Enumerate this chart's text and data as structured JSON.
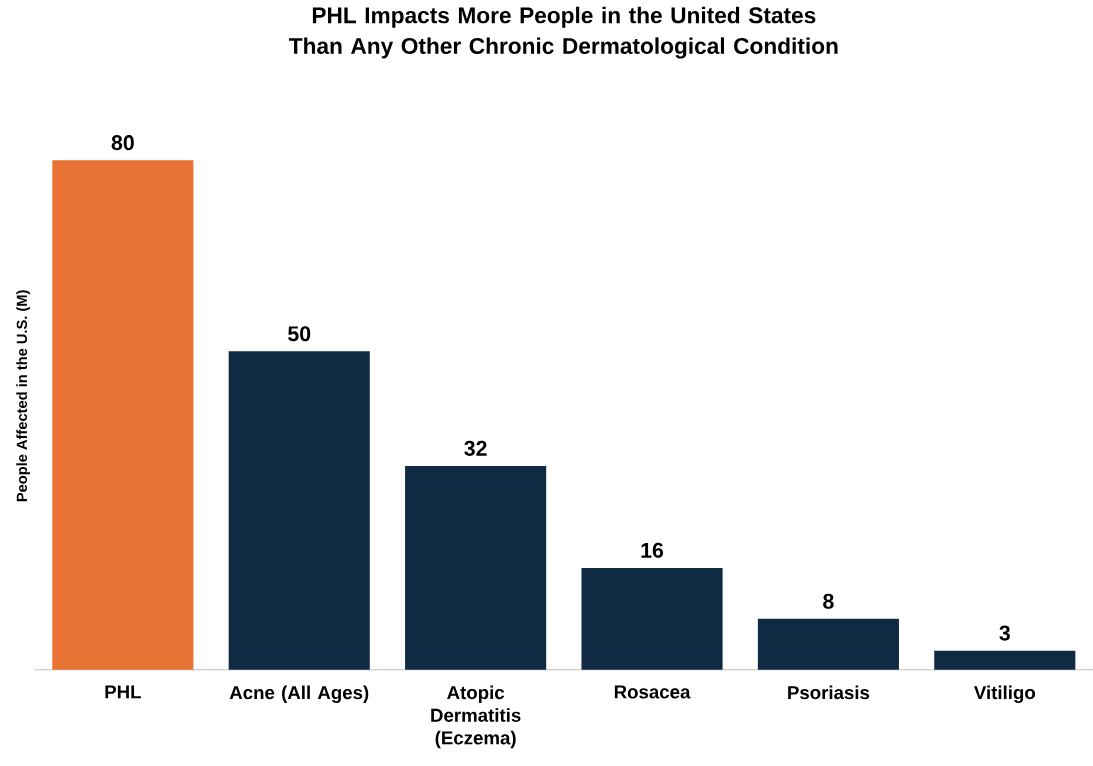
{
  "chart_data": {
    "type": "bar",
    "title": "PHL Impacts More People in the United States Than Any Other Chronic Dermatological Condition",
    "ylabel": "People Affected in the  U.S. (M)",
    "categories": [
      "PHL",
      "Acne (All Ages)",
      "Atopic Dermatitis (Eczema)",
      "Rosacea",
      "Psoriasis",
      "Vitiligo"
    ],
    "values": [
      80,
      50,
      32,
      16,
      8,
      3
    ],
    "colors": [
      "#e97334",
      "#112a43",
      "#112a43",
      "#112a43",
      "#112a43",
      "#112a43"
    ],
    "data_labels": true
  }
}
